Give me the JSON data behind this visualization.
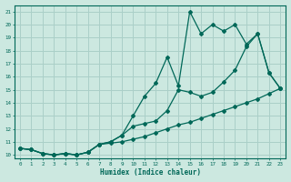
{
  "xlabel": "Humidex (Indice chaleur)",
  "bg_color": "#cce8e0",
  "grid_color": "#aacfc8",
  "line_color": "#006858",
  "xlim": [
    -0.5,
    23.5
  ],
  "ylim": [
    9.7,
    21.5
  ],
  "xticks": [
    0,
    1,
    2,
    3,
    4,
    5,
    6,
    7,
    8,
    9,
    10,
    11,
    12,
    13,
    14,
    15,
    16,
    17,
    18,
    19,
    20,
    21,
    22,
    23
  ],
  "yticks": [
    10,
    11,
    12,
    13,
    14,
    15,
    16,
    17,
    18,
    19,
    20,
    21
  ],
  "line1_y": [
    10.5,
    10.4,
    10.1,
    10.0,
    10.1,
    10.0,
    10.2,
    10.8,
    10.9,
    11.0,
    11.2,
    11.4,
    11.7,
    12.0,
    12.3,
    12.5,
    12.8,
    13.1,
    13.4,
    13.7,
    14.0,
    14.3,
    14.7,
    15.1
  ],
  "line2_y": [
    10.5,
    10.4,
    10.1,
    10.0,
    10.1,
    10.0,
    10.2,
    10.8,
    11.0,
    11.5,
    12.2,
    12.4,
    12.6,
    13.4,
    15.0,
    14.8,
    14.5,
    14.8,
    15.6,
    16.5,
    18.3,
    19.3,
    16.3,
    15.1
  ],
  "line3_y": [
    10.5,
    10.4,
    10.1,
    10.0,
    10.1,
    10.0,
    10.2,
    10.8,
    11.0,
    11.5,
    13.0,
    14.5,
    15.5,
    17.5,
    15.3,
    21.0,
    19.3,
    20.0,
    19.5,
    20.0,
    18.5,
    19.3,
    16.3,
    15.1
  ]
}
